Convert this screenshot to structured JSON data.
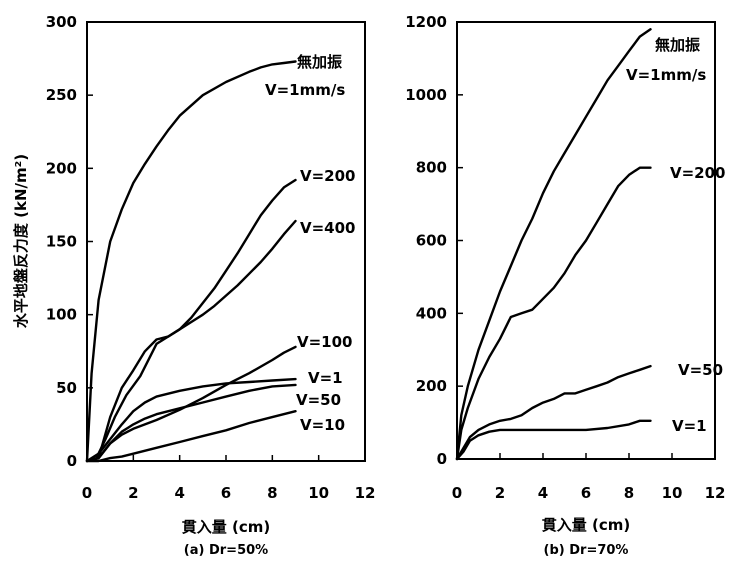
{
  "chart_data": [
    {
      "type": "line",
      "caption": "(a) Dr=50%",
      "xlabel": "貫入量 (cm)",
      "ylabel": "水平地盤反力度 (kN/m²)",
      "xlim": [
        0,
        12
      ],
      "ylim": [
        0,
        300
      ],
      "xticks": [
        0,
        2,
        4,
        6,
        8,
        10,
        12
      ],
      "yticks": [
        0,
        50,
        100,
        150,
        200,
        250,
        300
      ],
      "grid": false,
      "series": [
        {
          "name": "無加振\nV=1mm/s",
          "x": [
            0,
            0.2,
            0.5,
            1.0,
            1.5,
            2.0,
            2.5,
            3.0,
            3.5,
            4.0,
            5.0,
            6.0,
            7.0,
            7.5,
            8.0,
            8.5,
            9.0
          ],
          "y": [
            0,
            60,
            110,
            150,
            172,
            190,
            203,
            215,
            226,
            236,
            250,
            259,
            266,
            269,
            271,
            272,
            273
          ]
        },
        {
          "name": "V=200",
          "x": [
            0,
            0.4,
            0.8,
            1.2,
            1.7,
            2.3,
            3.0,
            3.5,
            4.0,
            4.5,
            5.0,
            5.5,
            6.0,
            6.5,
            7.0,
            7.5,
            8.0,
            8.5,
            9.0
          ],
          "y": [
            0,
            2,
            15,
            30,
            45,
            58,
            80,
            85,
            90,
            98,
            108,
            118,
            130,
            142,
            155,
            168,
            178,
            187,
            192
          ]
        },
        {
          "name": "V=400",
          "x": [
            0,
            0.5,
            1.0,
            1.5,
            2.0,
            2.5,
            3.0,
            3.5,
            4.0,
            4.5,
            5.0,
            5.5,
            6.0,
            6.5,
            7.0,
            7.5,
            8.0,
            8.5,
            9.0
          ],
          "y": [
            0,
            2,
            30,
            50,
            62,
            75,
            83,
            85,
            90,
            95,
            100,
            106,
            113,
            120,
            128,
            136,
            145,
            155,
            164
          ]
        },
        {
          "name": "V=100",
          "x": [
            0,
            0.5,
            1.0,
            1.5,
            2.0,
            2.5,
            3.0,
            4.0,
            5.0,
            6.0,
            7.0,
            8.0,
            8.5,
            9.0
          ],
          "y": [
            0,
            2,
            12,
            18,
            22,
            25,
            28,
            35,
            43,
            52,
            60,
            69,
            74,
            78
          ]
        },
        {
          "name": "V=1",
          "x": [
            0,
            0.5,
            1.0,
            1.5,
            2.0,
            2.5,
            3.0,
            4.0,
            5.0,
            6.0,
            7.0,
            8.0,
            9.0
          ],
          "y": [
            0,
            5,
            15,
            25,
            34,
            40,
            44,
            48,
            51,
            53,
            54,
            55,
            56
          ]
        },
        {
          "name": "V=50",
          "x": [
            0,
            0.5,
            1.0,
            1.5,
            2.0,
            2.5,
            3.0,
            4.0,
            5.0,
            6.0,
            7.0,
            8.0,
            9.0
          ],
          "y": [
            0,
            2,
            12,
            20,
            25,
            29,
            32,
            36,
            40,
            44,
            48,
            51,
            52
          ]
        },
        {
          "name": "V=10",
          "x": [
            0,
            0.5,
            1.0,
            1.5,
            2.0,
            3.0,
            4.0,
            5.0,
            6.0,
            7.0,
            8.0,
            9.0
          ],
          "y": [
            0,
            0,
            2,
            3,
            5,
            9,
            13,
            17,
            21,
            26,
            30,
            34
          ]
        }
      ]
    },
    {
      "type": "line",
      "caption": "(b) Dr=70%",
      "xlabel": "貫入量 (cm)",
      "ylabel": "",
      "xlim": [
        0,
        12
      ],
      "ylim": [
        0,
        1200
      ],
      "xticks": [
        0,
        2,
        4,
        6,
        8,
        10,
        12
      ],
      "yticks": [
        0,
        200,
        400,
        600,
        800,
        1000,
        1200
      ],
      "grid": false,
      "series": [
        {
          "name": "無加振\nV=1mm/s",
          "x": [
            0,
            0.2,
            0.5,
            1.0,
            1.5,
            2.0,
            2.5,
            3.0,
            3.5,
            4.0,
            4.5,
            5.0,
            5.5,
            6.0,
            6.5,
            7.0,
            7.5,
            8.0,
            8.5,
            9.0
          ],
          "y": [
            0,
            120,
            200,
            300,
            380,
            460,
            530,
            600,
            660,
            730,
            790,
            840,
            890,
            940,
            990,
            1040,
            1080,
            1120,
            1160,
            1180
          ]
        },
        {
          "name": "V=200",
          "x": [
            0,
            0.2,
            0.5,
            1.0,
            1.5,
            2.0,
            2.5,
            3.0,
            3.5,
            4.0,
            4.5,
            5.0,
            5.5,
            6.0,
            6.5,
            7.0,
            7.5,
            8.0,
            8.5,
            9.0
          ],
          "y": [
            0,
            80,
            140,
            220,
            280,
            330,
            390,
            400,
            410,
            440,
            470,
            510,
            560,
            600,
            650,
            700,
            750,
            780,
            800,
            800
          ]
        },
        {
          "name": "V=50",
          "x": [
            0,
            0.3,
            0.6,
            1.0,
            1.5,
            2.0,
            2.5,
            3.0,
            3.5,
            4.0,
            4.5,
            5.0,
            5.5,
            6.0,
            6.5,
            7.0,
            7.5,
            8.0,
            8.5,
            9.0
          ],
          "y": [
            0,
            30,
            60,
            80,
            95,
            105,
            110,
            120,
            140,
            155,
            165,
            180,
            180,
            190,
            200,
            210,
            225,
            235,
            245,
            255
          ]
        },
        {
          "name": "V=1",
          "x": [
            0,
            0.3,
            0.6,
            1.0,
            1.5,
            2.0,
            3.0,
            4.0,
            5.0,
            6.0,
            7.0,
            8.0,
            8.5,
            9.0
          ],
          "y": [
            0,
            20,
            50,
            65,
            75,
            80,
            80,
            80,
            80,
            80,
            85,
            95,
            105,
            105
          ]
        }
      ]
    }
  ]
}
